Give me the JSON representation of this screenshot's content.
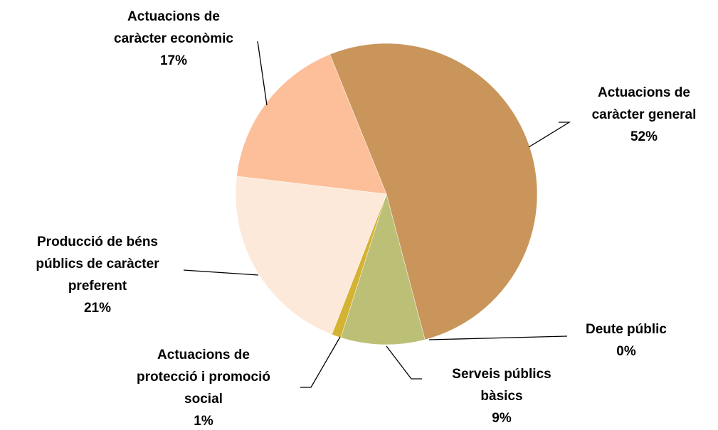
{
  "chart_data": {
    "type": "pie",
    "categories": [
      "Actuacions de\ncaràcter general",
      "Deute públic",
      "Serveis públics\nbàsics",
      "Actuacions de\nprotecció i promoció\nsocial",
      "Producció de béns\npúblics de caràcter\npreferent",
      "Actuacions de\ncaràcter econòmic"
    ],
    "values": [
      52,
      0,
      9,
      1,
      21,
      17
    ],
    "value_labels": [
      "52%",
      "0%",
      "9%",
      "1%",
      "21%",
      "17%"
    ],
    "colors": [
      "#c9955a",
      "#c0504d",
      "#bcbf76",
      "#d4b232",
      "#fde9d9",
      "#fdbf9a"
    ]
  }
}
